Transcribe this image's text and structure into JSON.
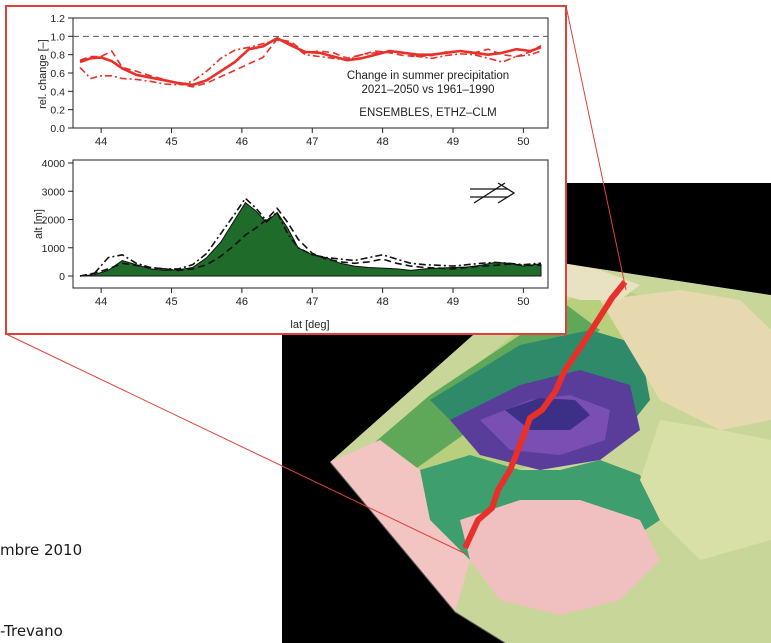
{
  "page_text": {
    "line1": "mbre 2010",
    "line2": "-Trevano"
  },
  "colors": {
    "callout_border": "#e0403a",
    "precip_line": "#e8302a",
    "terrain_fill": "#1f6b2a",
    "terrain_background": "#000000"
  },
  "terrain_panel": {
    "type": "image",
    "description_icon": "terrain-3d-icon"
  },
  "chart_data": [
    {
      "type": "line",
      "title": "",
      "annotation_lines": [
        "Change in summer precipitation",
        "2021–2050 vs 1961–1990"
      ],
      "annotation_source": "ENSEMBLES, ETHZ–CLM",
      "xlabel": "",
      "ylabel": "rel. change [–]",
      "xlim": [
        43.6,
        50.35
      ],
      "ylim": [
        0.0,
        1.2
      ],
      "x_ticks": [
        44,
        45,
        46,
        47,
        48,
        49,
        50
      ],
      "y_ticks": [
        "0.0",
        "0.2",
        "0.4",
        "0.6",
        "0.8",
        "1.0",
        "1.2"
      ],
      "reference_line": 1.0,
      "grid": false,
      "x": [
        43.7,
        43.85,
        44.0,
        44.15,
        44.3,
        44.5,
        44.7,
        44.9,
        45.1,
        45.3,
        45.5,
        45.7,
        45.9,
        46.1,
        46.3,
        46.5,
        46.7,
        46.9,
        47.1,
        47.3,
        47.5,
        47.7,
        47.9,
        48.1,
        48.3,
        48.5,
        48.7,
        48.9,
        49.1,
        49.3,
        49.5,
        49.7,
        49.9,
        50.1,
        50.25
      ],
      "series": [
        {
          "style": "solid",
          "values": [
            0.72,
            0.76,
            0.77,
            0.73,
            0.65,
            0.58,
            0.55,
            0.52,
            0.49,
            0.47,
            0.52,
            0.62,
            0.72,
            0.86,
            0.89,
            0.98,
            0.9,
            0.83,
            0.82,
            0.78,
            0.74,
            0.76,
            0.8,
            0.84,
            0.82,
            0.8,
            0.8,
            0.82,
            0.84,
            0.82,
            0.8,
            0.82,
            0.86,
            0.84,
            0.88
          ]
        },
        {
          "style": "dashed",
          "values": [
            0.74,
            0.78,
            0.78,
            0.84,
            0.66,
            0.62,
            0.57,
            0.53,
            0.48,
            0.45,
            0.49,
            0.56,
            0.63,
            0.7,
            0.77,
            0.97,
            0.94,
            0.82,
            0.84,
            0.82,
            0.76,
            0.8,
            0.84,
            0.82,
            0.79,
            0.78,
            0.79,
            0.83,
            0.84,
            0.82,
            0.86,
            0.8,
            0.78,
            0.83,
            0.9
          ]
        },
        {
          "style": "dashdot",
          "values": [
            0.66,
            0.54,
            0.57,
            0.57,
            0.54,
            0.53,
            0.51,
            0.48,
            0.47,
            0.51,
            0.62,
            0.76,
            0.85,
            0.88,
            0.92,
            0.96,
            0.92,
            0.8,
            0.78,
            0.76,
            0.74,
            0.8,
            0.82,
            0.84,
            0.82,
            0.78,
            0.76,
            0.79,
            0.81,
            0.8,
            0.76,
            0.72,
            0.78,
            0.8,
            0.84
          ]
        }
      ]
    },
    {
      "type": "area",
      "title": "",
      "xlabel": "lat [deg]",
      "ylabel": "alt [m]",
      "xlim": [
        43.6,
        50.35
      ],
      "ylim": [
        0,
        4000
      ],
      "x_ticks": [
        44,
        45,
        46,
        47,
        48,
        49,
        50
      ],
      "y_ticks": [
        "0",
        "1000",
        "2000",
        "3000",
        "4000"
      ],
      "grid": false,
      "x": [
        43.7,
        43.9,
        44.1,
        44.3,
        44.5,
        44.7,
        44.9,
        45.1,
        45.3,
        45.5,
        45.7,
        45.9,
        46.05,
        46.2,
        46.35,
        46.5,
        46.65,
        46.8,
        47.0,
        47.2,
        47.4,
        47.6,
        47.8,
        48.0,
        48.2,
        48.4,
        48.6,
        48.8,
        49.0,
        49.2,
        49.4,
        49.6,
        49.8,
        50.0,
        50.2,
        50.25
      ],
      "series": [
        {
          "style": "filled",
          "values": [
            0,
            50,
            200,
            550,
            400,
            250,
            200,
            220,
            300,
            650,
            1200,
            2000,
            2600,
            2300,
            1900,
            2250,
            1700,
            1000,
            750,
            650,
            450,
            350,
            300,
            280,
            250,
            200,
            250,
            280,
            300,
            320,
            380,
            480,
            450,
            350,
            420,
            400
          ]
        },
        {
          "style": "dashed",
          "values": [
            0,
            100,
            250,
            450,
            380,
            300,
            250,
            200,
            250,
            400,
            700,
            1100,
            1450,
            1700,
            2000,
            2400,
            1900,
            1300,
            800,
            600,
            500,
            450,
            500,
            600,
            450,
            350,
            300,
            280,
            250,
            300,
            350,
            380,
            420,
            380,
            380,
            380
          ]
        },
        {
          "style": "dashdot",
          "values": [
            0,
            80,
            650,
            750,
            450,
            300,
            250,
            250,
            400,
            800,
            1500,
            2200,
            2750,
            2400,
            1950,
            2250,
            1500,
            1000,
            750,
            650,
            600,
            550,
            650,
            750,
            600,
            450,
            400,
            380,
            350,
            400,
            450,
            480,
            450,
            400,
            450,
            450
          ]
        }
      ]
    }
  ]
}
